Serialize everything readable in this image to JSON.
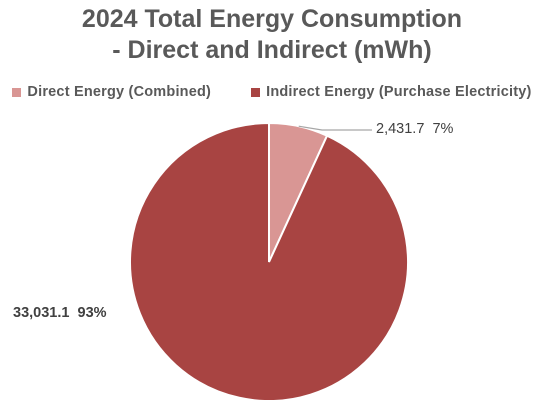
{
  "chart_data": {
    "type": "pie",
    "title_lines": [
      "2024 Total Energy Consumption",
      "- Direct and Indirect (mWh)"
    ],
    "series": [
      {
        "name": "Direct Energy (Combined)",
        "value": 2431.7,
        "value_label": "2,431.7",
        "percent_label": "7%",
        "color": "#d99694"
      },
      {
        "name": "Indirect Energy (Purchase Electricity)",
        "value": 33031.1,
        "value_label": "33,031.1",
        "percent_label": "93%",
        "color": "#a84442"
      }
    ],
    "legend_position": "top"
  }
}
